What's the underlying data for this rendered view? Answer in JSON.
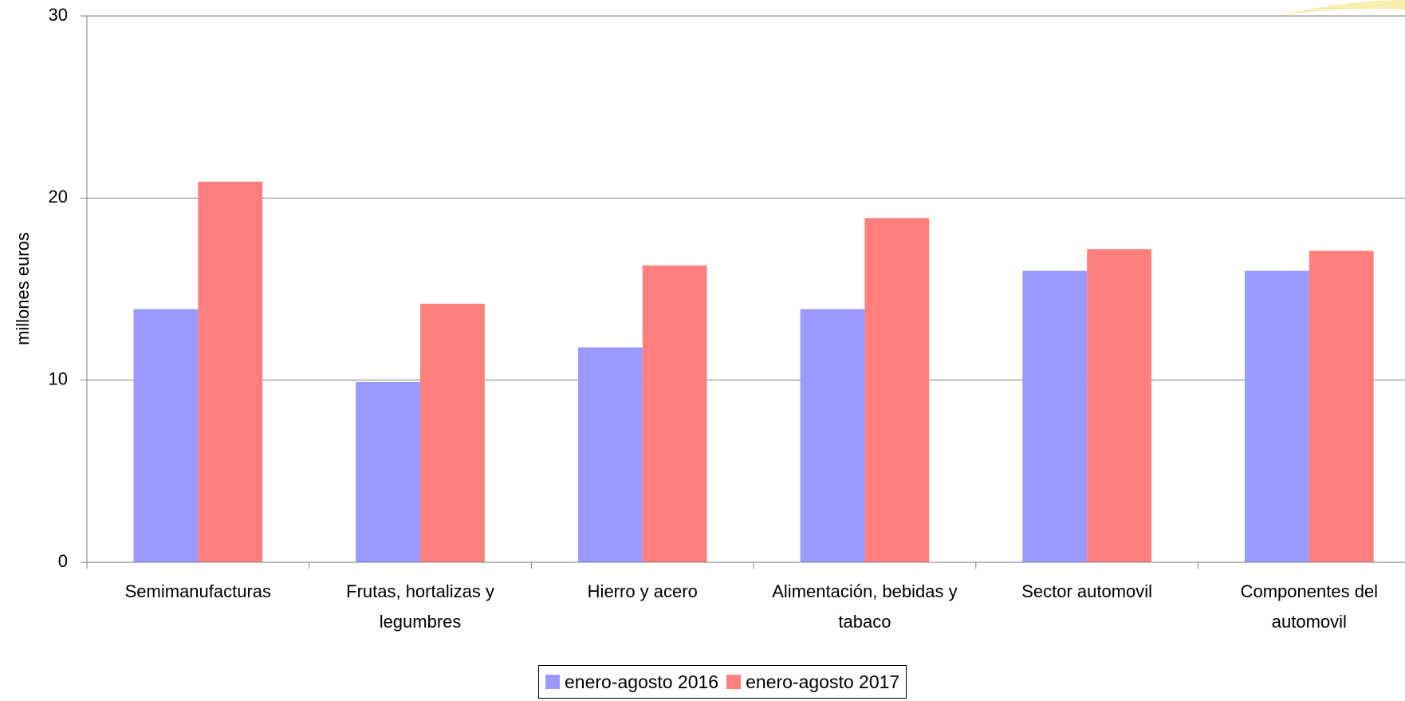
{
  "chart_data": {
    "type": "bar",
    "y_label": "millones euros",
    "categories": [
      "Semimanufacturas",
      "Frutas, hortalizas y legumbres",
      "Hierro y acero",
      "Alimentación, bebidas y tabaco",
      "Sector automovil",
      "Componentes del automovil"
    ],
    "series": [
      {
        "name": "enero-agosto 2016",
        "color": "#9999ff",
        "values": [
          13.9,
          9.9,
          11.8,
          13.9,
          16.0,
          16.0
        ]
      },
      {
        "name": "enero-agosto 2017",
        "color": "#ff7f7f",
        "values": [
          20.9,
          14.2,
          16.3,
          18.9,
          17.2,
          17.1
        ]
      }
    ],
    "ylim": [
      0,
      30
    ],
    "yticks": [
      0,
      10,
      20,
      30
    ],
    "grid": true
  }
}
